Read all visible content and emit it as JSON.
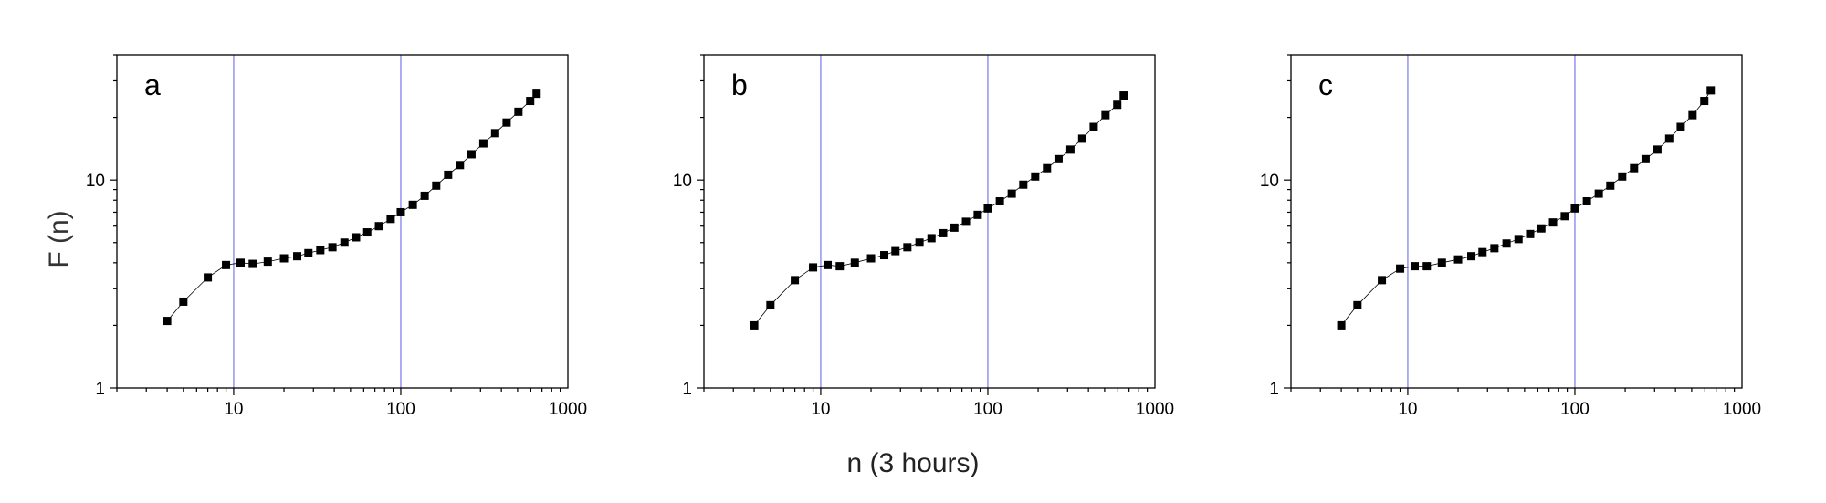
{
  "figure": {
    "ylabel": "F (n)",
    "xlabel": "n (3 hours)"
  },
  "chart_data": [
    {
      "type": "scatter",
      "panel_label": "a",
      "x_scale": "log",
      "y_scale": "log",
      "xlim": [
        2,
        1000
      ],
      "ylim": [
        1,
        40
      ],
      "x_ticks": [
        10,
        100,
        1000
      ],
      "x_tick_labels": [
        "10",
        "100",
        "1000"
      ],
      "y_ticks": [
        1,
        10
      ],
      "y_tick_labels": [
        "1",
        "10"
      ],
      "reference_lines_x": [
        10,
        100
      ],
      "reference_line_color": "#8c8cf0",
      "marker_color": "#000000",
      "series": [
        {
          "x": [
            4,
            5,
            7,
            9,
            11,
            13,
            16,
            20,
            24,
            28,
            33,
            39,
            46,
            54,
            63,
            74,
            87,
            100,
            118,
            139,
            163,
            192,
            226,
            265,
            312,
            367,
            430,
            506,
            595,
            650
          ],
          "y": [
            2.1,
            2.6,
            3.4,
            3.9,
            4.0,
            3.95,
            4.05,
            4.2,
            4.3,
            4.45,
            4.6,
            4.75,
            5.0,
            5.3,
            5.6,
            6.0,
            6.5,
            7.0,
            7.6,
            8.4,
            9.4,
            10.6,
            11.8,
            13.3,
            15.0,
            16.8,
            18.9,
            21.3,
            24.0,
            26.0
          ]
        }
      ]
    },
    {
      "type": "scatter",
      "panel_label": "b",
      "x_scale": "log",
      "y_scale": "log",
      "xlim": [
        2,
        1000
      ],
      "ylim": [
        1,
        40
      ],
      "x_ticks": [
        10,
        100,
        1000
      ],
      "x_tick_labels": [
        "10",
        "100",
        "1000"
      ],
      "y_ticks": [
        1,
        10
      ],
      "y_tick_labels": [
        "1",
        "10"
      ],
      "reference_lines_x": [
        10,
        100
      ],
      "reference_line_color": "#8c8cf0",
      "marker_color": "#000000",
      "series": [
        {
          "x": [
            4,
            5,
            7,
            9,
            11,
            13,
            16,
            20,
            24,
            28,
            33,
            39,
            46,
            54,
            63,
            74,
            87,
            100,
            118,
            139,
            163,
            192,
            226,
            265,
            312,
            367,
            430,
            506,
            595,
            650
          ],
          "y": [
            2.0,
            2.5,
            3.3,
            3.8,
            3.9,
            3.85,
            4.0,
            4.2,
            4.35,
            4.55,
            4.75,
            5.0,
            5.25,
            5.55,
            5.9,
            6.3,
            6.8,
            7.3,
            7.9,
            8.6,
            9.5,
            10.4,
            11.4,
            12.6,
            14.0,
            15.8,
            18.0,
            20.5,
            23.0,
            25.5
          ]
        }
      ]
    },
    {
      "type": "scatter",
      "panel_label": "c",
      "x_scale": "log",
      "y_scale": "log",
      "xlim": [
        2,
        1000
      ],
      "ylim": [
        1,
        40
      ],
      "x_ticks": [
        10,
        100,
        1000
      ],
      "x_tick_labels": [
        "10",
        "100",
        "1000"
      ],
      "y_ticks": [
        1,
        10
      ],
      "y_tick_labels": [
        "1",
        "10"
      ],
      "reference_lines_x": [
        10,
        100
      ],
      "reference_line_color": "#8c8cf0",
      "marker_color": "#000000",
      "series": [
        {
          "x": [
            4,
            5,
            7,
            9,
            11,
            13,
            16,
            20,
            24,
            28,
            33,
            39,
            46,
            54,
            63,
            74,
            87,
            100,
            118,
            139,
            163,
            192,
            226,
            265,
            312,
            367,
            430,
            506,
            595,
            650
          ],
          "y": [
            2.0,
            2.5,
            3.3,
            3.75,
            3.85,
            3.85,
            4.0,
            4.15,
            4.3,
            4.5,
            4.7,
            4.95,
            5.2,
            5.5,
            5.85,
            6.25,
            6.7,
            7.3,
            7.9,
            8.6,
            9.4,
            10.4,
            11.4,
            12.6,
            14.0,
            15.8,
            18.0,
            20.5,
            24.0,
            27.0
          ]
        }
      ]
    }
  ]
}
